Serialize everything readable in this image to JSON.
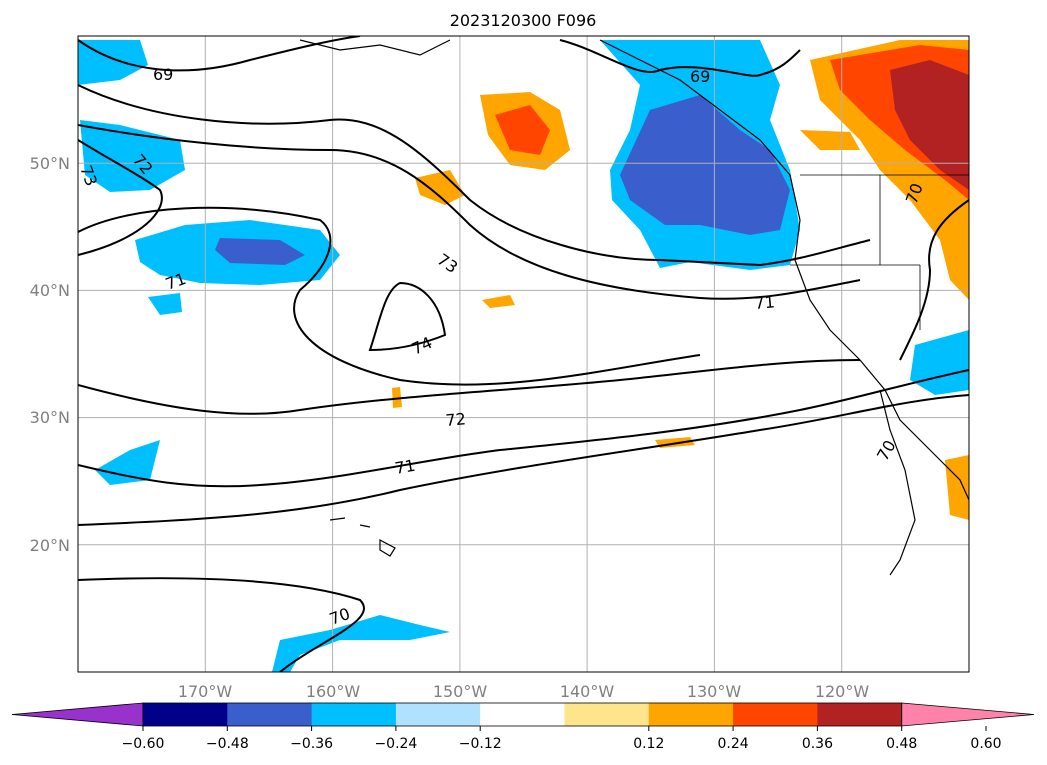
{
  "title": "2023120300 F096",
  "map": {
    "lat_labels": [
      {
        "text": "50°N",
        "lat": 50
      },
      {
        "text": "40°N",
        "lat": 40
      },
      {
        "text": "30°N",
        "lat": 30
      },
      {
        "text": "20°N",
        "lat": 20
      }
    ],
    "lon_labels": [
      {
        "text": "170°W",
        "lon": -170
      },
      {
        "text": "160°W",
        "lon": -160
      },
      {
        "text": "150°W",
        "lon": -150
      },
      {
        "text": "140°W",
        "lon": -140
      },
      {
        "text": "130°W",
        "lon": -130
      },
      {
        "text": "120°W",
        "lon": -120
      }
    ],
    "extent": {
      "lon_min": -180,
      "lon_max": -110,
      "lat_min": 10,
      "lat_max": 60
    },
    "contour_labels": [
      "69",
      "69",
      "72",
      "73",
      "73",
      "71",
      "74",
      "72",
      "71",
      "71",
      "70",
      "70",
      "70"
    ]
  },
  "colorbar": {
    "ticks": [
      "−0.60",
      "−0.48",
      "−0.36",
      "−0.24",
      "−0.12",
      "0.12",
      "0.24",
      "0.36",
      "0.48",
      "0.60"
    ],
    "colors": [
      "#9932cc",
      "#00008b",
      "#3a5fcd",
      "#00bfff",
      "#b0e2ff",
      "#ffffff",
      "#fee58b",
      "#ffa500",
      "#ff4500",
      "#b22222",
      "#ff82ab"
    ]
  }
}
